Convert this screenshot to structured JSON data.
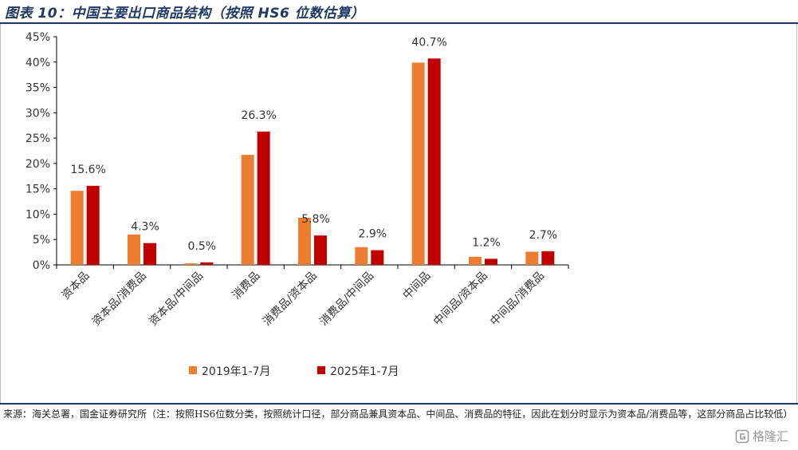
{
  "title": "图表 10：中国主要出口商品结构（按照 HS6 位数估算）",
  "source": "来源：海关总署，国金证券研究所（注：按照HS6位数分类，按照统计口径，部分商品兼具资本品、中间品、消费品的特征，因此在划分时显示为资本品/消费品等，这部分商品占比较低）",
  "watermark": "格隆汇",
  "colors": {
    "series_2019": "#ed7d31",
    "series_2025": "#c00000",
    "axis": "#000000",
    "title": "#1f3864"
  },
  "chart_data": {
    "type": "bar",
    "categories": [
      "资本品",
      "资本品/消费品",
      "资本品/中间品",
      "消费品",
      "消费品/资本品",
      "消费品/中间品",
      "中间品",
      "中间品/资本品",
      "中间品/消费品"
    ],
    "series": [
      {
        "name": "2019年1-7月",
        "color": "#ed7d31",
        "values": [
          14.6,
          6.0,
          0.3,
          21.7,
          9.3,
          3.5,
          39.9,
          1.6,
          2.6
        ]
      },
      {
        "name": "2025年1-7月",
        "color": "#c00000",
        "values": [
          15.6,
          4.3,
          0.5,
          26.3,
          5.8,
          2.9,
          40.7,
          1.2,
          2.7
        ]
      }
    ],
    "data_labels": [
      "15.6%",
      "4.3%",
      "0.5%",
      "26.3%",
      "5.8%",
      "2.9%",
      "40.7%",
      "1.2%",
      "2.7%"
    ],
    "ylim": [
      0,
      45
    ],
    "yticks": [
      "0%",
      "5%",
      "10%",
      "15%",
      "20%",
      "25%",
      "30%",
      "35%",
      "40%",
      "45%"
    ],
    "grid": false,
    "legend_position": "bottom"
  }
}
